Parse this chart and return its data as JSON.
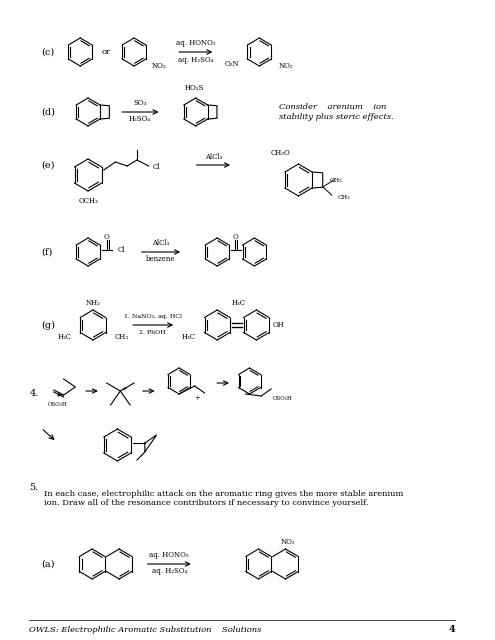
{
  "title": "OWLS: Electrophilic Aromatic Substitution    Solutions",
  "page_number": "4",
  "background_color": "#ffffff",
  "text_color": "#000000",
  "sections": {
    "c_label": "(c)",
    "d_label": "(d)",
    "e_label": "(e)",
    "f_label": "(f)",
    "g_label": "(g)",
    "num4_label": "4.",
    "num5_label": "5.",
    "a2_label": "(a)"
  },
  "c_reagent1": "aq. HONO₂",
  "c_reagent2": "aq. H₂SO₄",
  "d_reagent1": "SO₃",
  "d_reagent2": "H₂SO₄",
  "d_note": "Consider    arenium    ion\nstability plus steric effects.",
  "e_reagent": "AlCl₃",
  "f_reagent1": "AlCl₃",
  "f_reagent2": "benzene",
  "g_reagent1": "1. NaNO₂, aq. HCl",
  "g_reagent2": "2. PhOH",
  "problem5_text": "In each case, electrophilic attack on the aromatic ring gives the more stable arenium\nion. Draw all of the resonance contributors if necessary to convince yourself.",
  "a_reagent1": "aq. HONO₂",
  "a_reagent2": "aq. H₂SO₄"
}
